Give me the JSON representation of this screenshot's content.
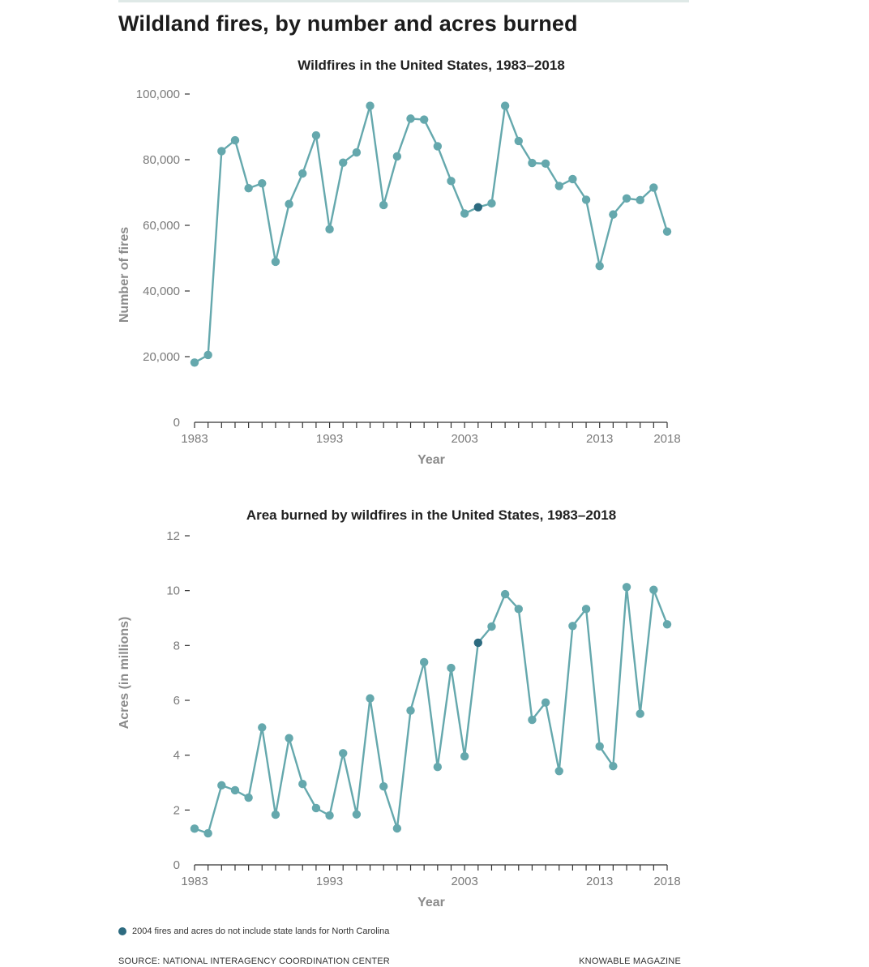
{
  "title": "Wildland fires, by number and acres burned",
  "colors": {
    "line": "#65a8ad",
    "highlight": "#2d6b80",
    "axis": "#333333"
  },
  "chart_data": [
    {
      "type": "line",
      "title": "Wildfires in the United States, 1983–2018",
      "xlabel": "Year",
      "ylabel": "Number of fires",
      "xlim": [
        1983,
        2018
      ],
      "ylim": [
        0,
        100000
      ],
      "yticks": [
        "0",
        "20,000",
        "40,000",
        "60,000",
        "80,000",
        "100,000"
      ],
      "xtick_labels": [
        "1983",
        "1993",
        "2003",
        "2013",
        "2018"
      ],
      "highlight_year": 2004,
      "x": [
        1983,
        1984,
        1985,
        1986,
        1987,
        1988,
        1989,
        1990,
        1991,
        1992,
        1993,
        1994,
        1995,
        1996,
        1997,
        1998,
        1999,
        2000,
        2001,
        2002,
        2003,
        2004,
        2005,
        2006,
        2007,
        2008,
        2009,
        2010,
        2011,
        2012,
        2013,
        2014,
        2015,
        2016,
        2017,
        2018
      ],
      "series": [
        {
          "values": [
            18200,
            20500,
            82600,
            85900,
            71300,
            72800,
            48900,
            66500,
            75800,
            87400,
            58800,
            79100,
            82200,
            96400,
            66200,
            81000,
            92500,
            92200,
            84100,
            73500,
            63600,
            65500,
            66700,
            96400,
            85700,
            79000,
            78800,
            72000,
            74100,
            67800,
            47600,
            63300,
            68200,
            67700,
            71500,
            58100
          ]
        }
      ]
    },
    {
      "type": "line",
      "title": "Area burned by wildfires in the United States, 1983–2018",
      "xlabel": "Year",
      "ylabel": "Acres (in millions)",
      "xlim": [
        1983,
        2018
      ],
      "ylim": [
        0,
        12
      ],
      "yticks": [
        "0",
        "2",
        "4",
        "6",
        "8",
        "10",
        "12"
      ],
      "xtick_labels": [
        "1983",
        "1993",
        "2003",
        "2013",
        "2018"
      ],
      "highlight_year": 2004,
      "x": [
        1983,
        1984,
        1985,
        1986,
        1987,
        1988,
        1989,
        1990,
        1991,
        1992,
        1993,
        1994,
        1995,
        1996,
        1997,
        1998,
        1999,
        2000,
        2001,
        2002,
        2003,
        2004,
        2005,
        2006,
        2007,
        2008,
        2009,
        2010,
        2011,
        2012,
        2013,
        2014,
        2015,
        2016,
        2017,
        2018
      ],
      "series": [
        {
          "values": [
            1.32,
            1.15,
            2.9,
            2.72,
            2.45,
            5.01,
            1.83,
            4.62,
            2.95,
            2.07,
            1.8,
            4.07,
            1.84,
            6.07,
            2.86,
            1.33,
            5.63,
            7.39,
            3.57,
            7.18,
            3.96,
            8.1,
            8.69,
            9.87,
            9.33,
            5.29,
            5.92,
            3.42,
            8.71,
            9.33,
            4.32,
            3.6,
            10.13,
            5.51,
            10.03,
            8.77
          ]
        }
      ]
    }
  ],
  "footnote": "2004 fires and acres do not include state lands for North Carolina",
  "source": "SOURCE: NATIONAL INTERAGENCY COORDINATION CENTER",
  "credit": "KNOWABLE MAGAZINE"
}
